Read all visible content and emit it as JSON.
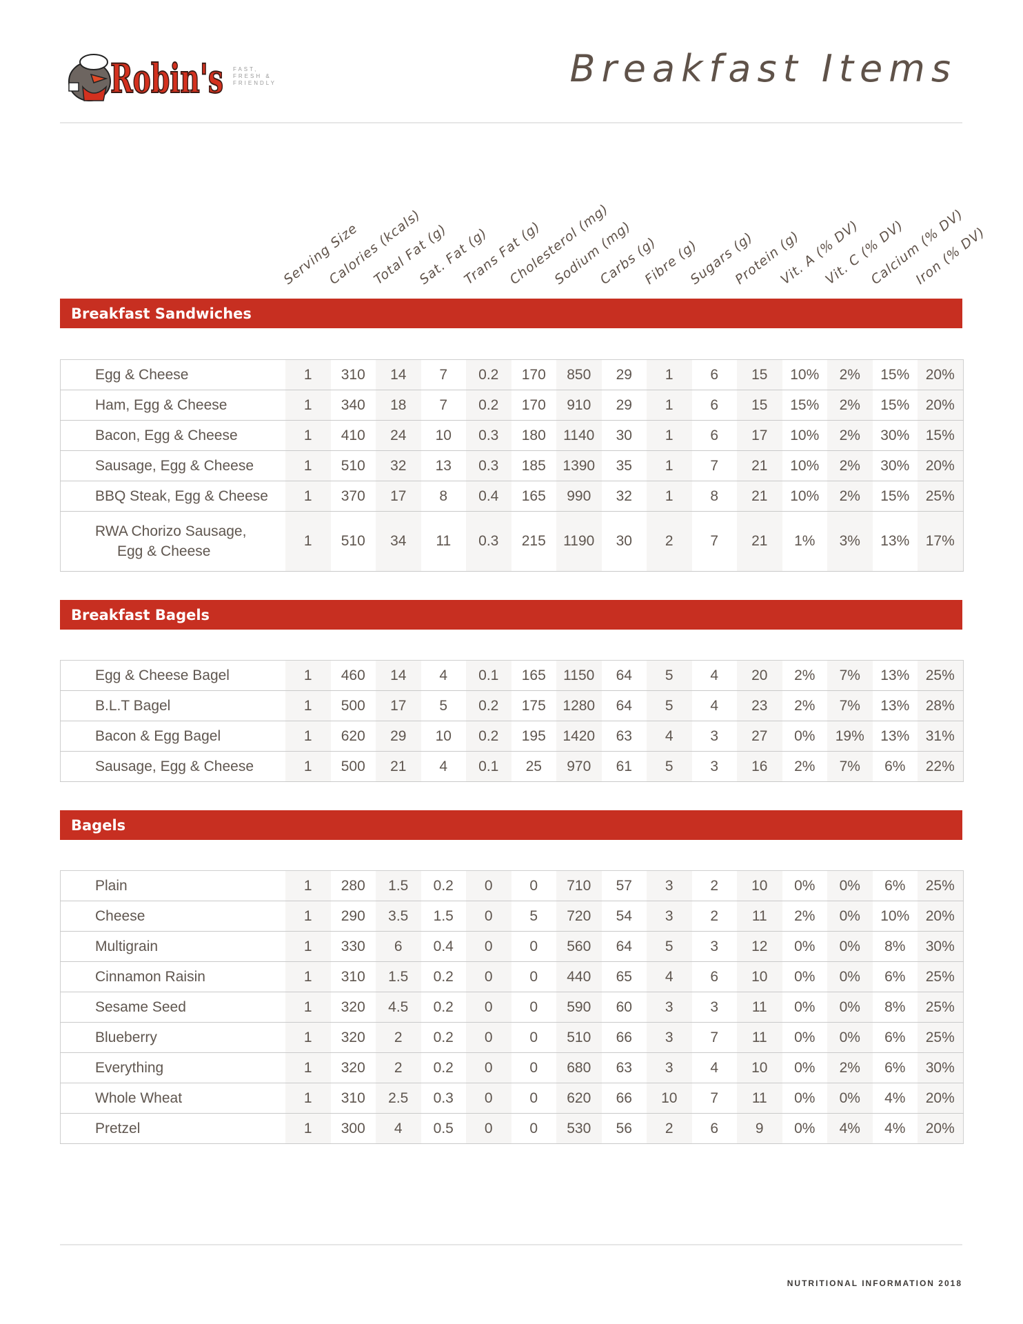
{
  "brand": {
    "logo_text": "Robin's",
    "tagline": [
      "FAST,",
      "FRESH &",
      "FRIENDLY"
    ],
    "accent": "#c72f21"
  },
  "title": "Breakfast Items",
  "columns": [
    "Serving Size",
    "Calories (kcals)",
    "Total Fat (g)",
    "Sat. Fat (g)",
    "Trans Fat (g)",
    "Cholesterol (mg)",
    "Sodium (mg)",
    "Carbs (g)",
    "Fibre (g)",
    "Sugars (g)",
    "Protein (g)",
    "Vit. A (% DV)",
    "Vit. C (% DV)",
    "Calcium (% DV)",
    "Iron (% DV)"
  ],
  "sections": [
    {
      "title": "Breakfast Sandwiches",
      "rows": [
        {
          "name": "Egg & Cheese",
          "values": [
            "1",
            "310",
            "14",
            "7",
            "0.2",
            "170",
            "850",
            "29",
            "1",
            "6",
            "15",
            "10%",
            "2%",
            "15%",
            "20%"
          ]
        },
        {
          "name": "Ham, Egg & Cheese",
          "values": [
            "1",
            "340",
            "18",
            "7",
            "0.2",
            "170",
            "910",
            "29",
            "1",
            "6",
            "15",
            "15%",
            "2%",
            "15%",
            "20%"
          ]
        },
        {
          "name": "Bacon, Egg & Cheese",
          "values": [
            "1",
            "410",
            "24",
            "10",
            "0.3",
            "180",
            "1140",
            "30",
            "1",
            "6",
            "17",
            "10%",
            "2%",
            "30%",
            "15%"
          ]
        },
        {
          "name": "Sausage, Egg & Cheese",
          "values": [
            "1",
            "510",
            "32",
            "13",
            "0.3",
            "185",
            "1390",
            "35",
            "1",
            "7",
            "21",
            "10%",
            "2%",
            "30%",
            "20%"
          ]
        },
        {
          "name": "BBQ Steak, Egg & Cheese",
          "values": [
            "1",
            "370",
            "17",
            "8",
            "0.4",
            "165",
            "990",
            "32",
            "1",
            "8",
            "21",
            "10%",
            "2%",
            "15%",
            "25%"
          ]
        },
        {
          "name": "RWA Chorizo Sausage,",
          "name2": "Egg & Cheese",
          "values": [
            "1",
            "510",
            "34",
            "11",
            "0.3",
            "215",
            "1190",
            "30",
            "2",
            "7",
            "21",
            "1%",
            "3%",
            "13%",
            "17%"
          ]
        }
      ]
    },
    {
      "title": "Breakfast Bagels",
      "rows": [
        {
          "name": "Egg & Cheese Bagel",
          "values": [
            "1",
            "460",
            "14",
            "4",
            "0.1",
            "165",
            "1150",
            "64",
            "5",
            "4",
            "20",
            "2%",
            "7%",
            "13%",
            "25%"
          ]
        },
        {
          "name": "B.L.T Bagel",
          "values": [
            "1",
            "500",
            "17",
            "5",
            "0.2",
            "175",
            "1280",
            "64",
            "5",
            "4",
            "23",
            "2%",
            "7%",
            "13%",
            "28%"
          ]
        },
        {
          "name": "Bacon & Egg Bagel",
          "values": [
            "1",
            "620",
            "29",
            "10",
            "0.2",
            "195",
            "1420",
            "63",
            "4",
            "3",
            "27",
            "0%",
            "19%",
            "13%",
            "31%"
          ]
        },
        {
          "name": "Sausage, Egg & Cheese",
          "values": [
            "1",
            "500",
            "21",
            "4",
            "0.1",
            "25",
            "970",
            "61",
            "5",
            "3",
            "16",
            "2%",
            "7%",
            "6%",
            "22%"
          ]
        }
      ]
    },
    {
      "title": "Bagels",
      "rows": [
        {
          "name": "Plain",
          "values": [
            "1",
            "280",
            "1.5",
            "0.2",
            "0",
            "0",
            "710",
            "57",
            "3",
            "2",
            "10",
            "0%",
            "0%",
            "6%",
            "25%"
          ]
        },
        {
          "name": "Cheese",
          "values": [
            "1",
            "290",
            "3.5",
            "1.5",
            "0",
            "5",
            "720",
            "54",
            "3",
            "2",
            "11",
            "2%",
            "0%",
            "10%",
            "20%"
          ]
        },
        {
          "name": "Multigrain",
          "values": [
            "1",
            "330",
            "6",
            "0.4",
            "0",
            "0",
            "560",
            "64",
            "5",
            "3",
            "12",
            "0%",
            "0%",
            "8%",
            "30%"
          ]
        },
        {
          "name": "Cinnamon Raisin",
          "values": [
            "1",
            "310",
            "1.5",
            "0.2",
            "0",
            "0",
            "440",
            "65",
            "4",
            "6",
            "10",
            "0%",
            "0%",
            "6%",
            "25%"
          ]
        },
        {
          "name": "Sesame Seed",
          "values": [
            "1",
            "320",
            "4.5",
            "0.2",
            "0",
            "0",
            "590",
            "60",
            "3",
            "3",
            "11",
            "0%",
            "0%",
            "8%",
            "25%"
          ]
        },
        {
          "name": "Blueberry",
          "values": [
            "1",
            "320",
            "2",
            "0.2",
            "0",
            "0",
            "510",
            "66",
            "3",
            "7",
            "11",
            "0%",
            "0%",
            "6%",
            "25%"
          ]
        },
        {
          "name": "Everything",
          "values": [
            "1",
            "320",
            "2",
            "0.2",
            "0",
            "0",
            "680",
            "63",
            "3",
            "4",
            "10",
            "0%",
            "2%",
            "6%",
            "30%"
          ]
        },
        {
          "name": "Whole Wheat",
          "values": [
            "1",
            "310",
            "2.5",
            "0.3",
            "0",
            "0",
            "620",
            "66",
            "10",
            "7",
            "11",
            "0%",
            "0%",
            "4%",
            "20%"
          ]
        },
        {
          "name": "Pretzel",
          "values": [
            "1",
            "300",
            "4",
            "0.5",
            "0",
            "0",
            "530",
            "56",
            "2",
            "6",
            "9",
            "0%",
            "4%",
            "4%",
            "20%"
          ]
        }
      ]
    }
  ],
  "footer": "NUTRITIONAL INFORMATION 2018"
}
